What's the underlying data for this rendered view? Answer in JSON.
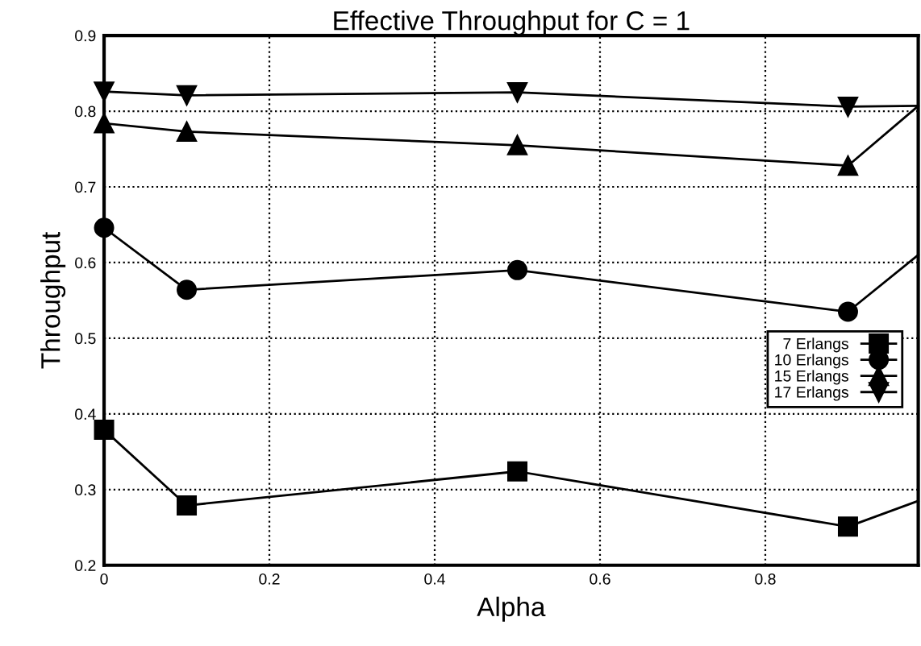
{
  "chart_data": {
    "type": "line",
    "title": "Effective Throughput for C = 1",
    "xlabel": "Alpha",
    "ylabel": "Throughput",
    "x": [
      0,
      0.1,
      0.5,
      0.9,
      0.985
    ],
    "series": [
      {
        "name": "7 Erlangs",
        "color": "#000000",
        "marker": "square",
        "values": [
          0.379,
          0.279,
          0.324,
          0.251,
          0.285
        ]
      },
      {
        "name": "10 Erlangs",
        "color": "#000000",
        "marker": "circle",
        "values": [
          0.646,
          0.564,
          0.59,
          0.535,
          0.61
        ]
      },
      {
        "name": "15 Erlangs",
        "color": "#000000",
        "marker": "triangle",
        "values": [
          0.784,
          0.773,
          0.755,
          0.728,
          0.807
        ]
      },
      {
        "name": "17 Erlangs",
        "color": "#000000",
        "marker": "triangle_down",
        "values": [
          0.826,
          0.821,
          0.825,
          0.806,
          0.807
        ]
      }
    ],
    "xlim": [
      0,
      0.985
    ],
    "xticks": [
      0,
      0.2,
      0.4,
      0.6,
      0.8
    ],
    "ylim": [
      0.2,
      0.9
    ],
    "yticks": [
      0.2,
      0.3,
      0.4,
      0.5,
      0.6,
      0.7,
      0.8,
      0.9
    ],
    "grid": true,
    "legend": "right",
    "line_style": "solid"
  }
}
